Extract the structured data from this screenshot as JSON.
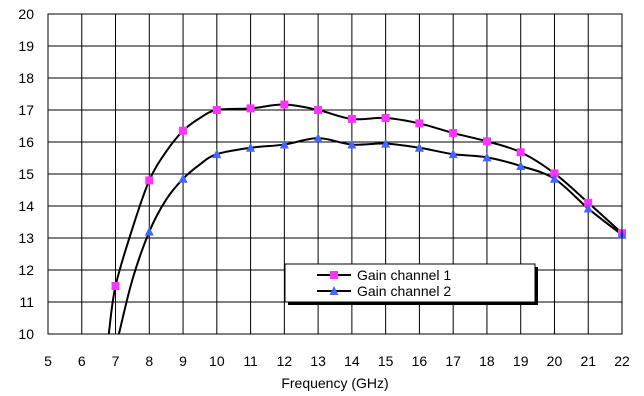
{
  "chart_data": {
    "type": "line",
    "xlabel": "Frequency (GHz)",
    "ylabel": "",
    "xlim": [
      5,
      22
    ],
    "ylim": [
      10,
      20
    ],
    "x_ticks": [
      5,
      6,
      7,
      8,
      9,
      10,
      11,
      12,
      13,
      14,
      15,
      16,
      17,
      18,
      19,
      20,
      21,
      22
    ],
    "y_ticks": [
      10,
      11,
      12,
      13,
      14,
      15,
      16,
      17,
      18,
      19,
      20
    ],
    "grid": true,
    "legend_position": "lower-right",
    "series": [
      {
        "name": "Gain channel 1",
        "color": "#000000",
        "marker": "square",
        "marker_color": "#ff33ff",
        "curve": [
          [
            6.8,
            10.0
          ],
          [
            7.0,
            11.5
          ],
          [
            7.5,
            13.3
          ],
          [
            8.0,
            14.8
          ],
          [
            8.5,
            15.7
          ],
          [
            9.0,
            16.35
          ],
          [
            9.5,
            16.75
          ],
          [
            10.0,
            17.0
          ],
          [
            11.0,
            17.05
          ],
          [
            12.0,
            17.17
          ],
          [
            13.0,
            17.0
          ],
          [
            14.0,
            16.72
          ],
          [
            15.0,
            16.75
          ],
          [
            16.0,
            16.58
          ],
          [
            17.0,
            16.28
          ],
          [
            18.0,
            16.02
          ],
          [
            19.0,
            15.68
          ],
          [
            20.0,
            15.02
          ],
          [
            21.0,
            14.1
          ],
          [
            22.0,
            13.15
          ]
        ],
        "points": [
          [
            7,
            11.5
          ],
          [
            8,
            14.8
          ],
          [
            9,
            16.35
          ],
          [
            10,
            17.0
          ],
          [
            11,
            17.05
          ],
          [
            12,
            17.17
          ],
          [
            13,
            17.0
          ],
          [
            14,
            16.72
          ],
          [
            15,
            16.75
          ],
          [
            16,
            16.58
          ],
          [
            17,
            16.28
          ],
          [
            18,
            16.02
          ],
          [
            19,
            15.68
          ],
          [
            20,
            15.02
          ],
          [
            21,
            14.1
          ],
          [
            22,
            13.15
          ]
        ]
      },
      {
        "name": "Gain channel 2",
        "color": "#000000",
        "marker": "triangle",
        "marker_color": "#4466ff",
        "curve": [
          [
            7.1,
            10.0
          ],
          [
            7.5,
            11.7
          ],
          [
            8.0,
            13.2
          ],
          [
            8.5,
            14.2
          ],
          [
            9.0,
            14.85
          ],
          [
            9.5,
            15.3
          ],
          [
            10.0,
            15.62
          ],
          [
            11.0,
            15.82
          ],
          [
            12.0,
            15.92
          ],
          [
            13.0,
            16.12
          ],
          [
            14.0,
            15.92
          ],
          [
            15.0,
            15.95
          ],
          [
            16.0,
            15.82
          ],
          [
            17.0,
            15.62
          ],
          [
            18.0,
            15.52
          ],
          [
            19.0,
            15.25
          ],
          [
            20.0,
            14.85
          ],
          [
            21.0,
            13.92
          ],
          [
            22.0,
            13.1
          ]
        ],
        "points": [
          [
            8,
            13.2
          ],
          [
            9,
            14.85
          ],
          [
            10,
            15.62
          ],
          [
            11,
            15.82
          ],
          [
            12,
            15.92
          ],
          [
            13,
            16.12
          ],
          [
            14,
            15.92
          ],
          [
            15,
            15.95
          ],
          [
            16,
            15.82
          ],
          [
            17,
            15.62
          ],
          [
            18,
            15.52
          ],
          [
            19,
            15.25
          ],
          [
            20,
            14.85
          ],
          [
            21,
            13.92
          ],
          [
            22,
            13.1
          ]
        ]
      }
    ]
  }
}
